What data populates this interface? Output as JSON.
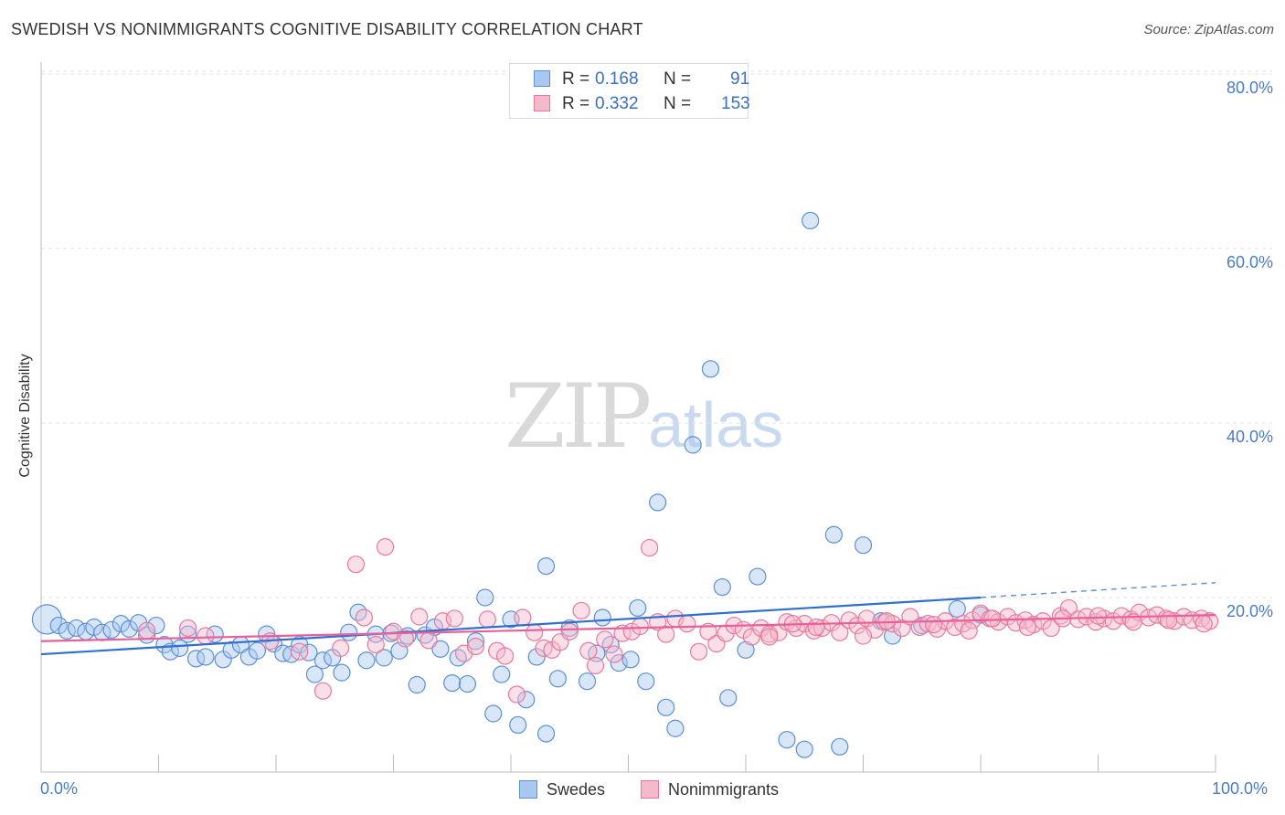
{
  "title": "SWEDISH VS NONIMMIGRANTS COGNITIVE DISABILITY CORRELATION CHART",
  "source": "Source: ZipAtlas.com",
  "watermark": {
    "zip": "ZIP",
    "atlas": "atlas"
  },
  "stats": [
    {
      "r_label": "R =",
      "r_value": "0.168",
      "n_label": "N =",
      "n_value": "91",
      "color": "#a9c8ef"
    },
    {
      "r_label": "R =",
      "r_value": "0.332",
      "n_label": "N =",
      "n_value": "153",
      "color": "#f6b9cc"
    }
  ],
  "legend": [
    {
      "name": "Swedes",
      "color": "#a9c8ef"
    },
    {
      "name": "Nonimmigrants",
      "color": "#f6b9cc"
    }
  ],
  "chart_data": {
    "type": "scatter",
    "title": "SWEDISH VS NONIMMIGRANTS COGNITIVE DISABILITY CORRELATION CHART",
    "xlabel": "",
    "ylabel": "Cognitive Disability",
    "xlim": [
      0,
      100
    ],
    "ylim": [
      0,
      80
    ],
    "x_tick_labels": [
      "0.0%",
      "100.0%"
    ],
    "y_tick_labels": [
      "80.0%",
      "60.0%",
      "40.0%",
      "20.0%"
    ],
    "y_ticks": [
      80,
      60,
      40,
      20
    ],
    "grid": true,
    "legend_position": "bottom",
    "series": [
      {
        "name": "Swedes",
        "color": "#5b8fd6",
        "fill": "#a9c8ef",
        "trend": {
          "x": [
            0,
            80
          ],
          "y": [
            13.5,
            20.0
          ],
          "dashed_extension": {
            "x": [
              80,
              100
            ],
            "y": [
              20.0,
              21.7
            ]
          }
        },
        "points": [
          [
            0.5,
            17.5
          ],
          [
            1.5,
            16.8
          ],
          [
            2.2,
            16.2
          ],
          [
            3.0,
            16.5
          ],
          [
            3.8,
            16.1
          ],
          [
            4.5,
            16.6
          ],
          [
            5.2,
            16.0
          ],
          [
            6.0,
            16.3
          ],
          [
            6.8,
            17.0
          ],
          [
            7.5,
            16.4
          ],
          [
            8.3,
            17.1
          ],
          [
            9.0,
            15.7
          ],
          [
            9.8,
            16.8
          ],
          [
            10.5,
            14.6
          ],
          [
            11.0,
            13.8
          ],
          [
            11.8,
            14.2
          ],
          [
            12.5,
            15.8
          ],
          [
            13.2,
            13.0
          ],
          [
            14.0,
            13.2
          ],
          [
            14.8,
            15.8
          ],
          [
            15.5,
            12.9
          ],
          [
            16.2,
            14.0
          ],
          [
            17.0,
            14.6
          ],
          [
            17.7,
            13.2
          ],
          [
            18.4,
            13.9
          ],
          [
            19.2,
            15.8
          ],
          [
            19.8,
            14.7
          ],
          [
            20.6,
            13.6
          ],
          [
            21.3,
            13.5
          ],
          [
            22.0,
            14.6
          ],
          [
            22.8,
            13.7
          ],
          [
            23.3,
            11.2
          ],
          [
            24.0,
            12.8
          ],
          [
            24.8,
            13.1
          ],
          [
            25.6,
            11.4
          ],
          [
            26.2,
            16.0
          ],
          [
            27.0,
            18.3
          ],
          [
            27.7,
            12.8
          ],
          [
            28.5,
            15.8
          ],
          [
            29.2,
            13.1
          ],
          [
            29.8,
            15.9
          ],
          [
            30.5,
            13.9
          ],
          [
            31.2,
            15.6
          ],
          [
            32.0,
            10.0
          ],
          [
            32.7,
            15.7
          ],
          [
            33.5,
            16.6
          ],
          [
            34.0,
            14.1
          ],
          [
            35.0,
            10.2
          ],
          [
            35.5,
            13.1
          ],
          [
            36.3,
            10.1
          ],
          [
            37.0,
            15.0
          ],
          [
            37.8,
            20.0
          ],
          [
            38.5,
            6.7
          ],
          [
            39.2,
            11.2
          ],
          [
            40.0,
            17.5
          ],
          [
            40.6,
            5.4
          ],
          [
            41.3,
            8.3
          ],
          [
            42.2,
            13.2
          ],
          [
            43.0,
            4.4
          ],
          [
            43.0,
            23.6
          ],
          [
            44.0,
            10.7
          ],
          [
            45.0,
            16.5
          ],
          [
            46.5,
            10.4
          ],
          [
            47.3,
            13.6
          ],
          [
            47.8,
            17.7
          ],
          [
            48.5,
            14.6
          ],
          [
            49.2,
            12.5
          ],
          [
            50.2,
            12.9
          ],
          [
            50.8,
            18.8
          ],
          [
            51.5,
            10.4
          ],
          [
            52.5,
            30.9
          ],
          [
            53.2,
            7.4
          ],
          [
            54.0,
            5.0
          ],
          [
            55.5,
            37.5
          ],
          [
            57.0,
            46.2
          ],
          [
            58.0,
            21.2
          ],
          [
            58.5,
            8.5
          ],
          [
            60.0,
            14.0
          ],
          [
            61.0,
            22.4
          ],
          [
            63.5,
            3.7
          ],
          [
            65.0,
            2.6
          ],
          [
            65.5,
            63.2
          ],
          [
            67.5,
            27.2
          ],
          [
            68.0,
            2.9
          ],
          [
            70.0,
            26.0
          ],
          [
            71.5,
            17.3
          ],
          [
            72.5,
            15.6
          ],
          [
            75.0,
            16.8
          ],
          [
            78.0,
            18.7
          ],
          [
            80.0,
            18.0
          ]
        ]
      },
      {
        "name": "Nonimmigrants",
        "color": "#e8799b",
        "fill": "#f6b9cc",
        "trend": {
          "x": [
            0,
            100
          ],
          "y": [
            15.0,
            18.0
          ]
        },
        "points": [
          [
            9.0,
            16.2
          ],
          [
            12.5,
            16.5
          ],
          [
            14.0,
            15.6
          ],
          [
            19.5,
            15.0
          ],
          [
            22.0,
            13.8
          ],
          [
            24.0,
            9.3
          ],
          [
            25.5,
            14.2
          ],
          [
            26.8,
            23.8
          ],
          [
            27.5,
            17.7
          ],
          [
            28.5,
            14.6
          ],
          [
            29.3,
            25.8
          ],
          [
            30.0,
            16.1
          ],
          [
            31.0,
            15.3
          ],
          [
            32.2,
            17.8
          ],
          [
            33.0,
            15.1
          ],
          [
            34.2,
            17.3
          ],
          [
            35.2,
            17.6
          ],
          [
            36.0,
            13.6
          ],
          [
            37.0,
            14.4
          ],
          [
            38.0,
            17.5
          ],
          [
            38.8,
            13.9
          ],
          [
            39.5,
            13.3
          ],
          [
            40.5,
            8.9
          ],
          [
            41.0,
            17.7
          ],
          [
            42.0,
            16.0
          ],
          [
            42.8,
            14.2
          ],
          [
            43.5,
            14.0
          ],
          [
            44.2,
            14.9
          ],
          [
            45.0,
            16.1
          ],
          [
            46.0,
            18.5
          ],
          [
            46.6,
            13.9
          ],
          [
            47.2,
            12.2
          ],
          [
            48.0,
            15.2
          ],
          [
            48.8,
            13.5
          ],
          [
            49.5,
            15.9
          ],
          [
            50.3,
            16.1
          ],
          [
            51.0,
            16.7
          ],
          [
            51.8,
            25.7
          ],
          [
            52.5,
            17.2
          ],
          [
            53.2,
            15.8
          ],
          [
            54.0,
            17.6
          ],
          [
            55.0,
            17.0
          ],
          [
            56.0,
            13.8
          ],
          [
            56.8,
            16.1
          ],
          [
            57.5,
            14.7
          ],
          [
            58.3,
            15.9
          ],
          [
            59.0,
            16.8
          ],
          [
            59.8,
            16.3
          ],
          [
            60.5,
            15.5
          ],
          [
            61.3,
            16.5
          ],
          [
            62.0,
            15.8
          ],
          [
            62.8,
            16.0
          ],
          [
            63.5,
            17.2
          ],
          [
            64.3,
            16.5
          ],
          [
            65.0,
            17.0
          ],
          [
            65.8,
            16.2
          ],
          [
            66.5,
            16.5
          ],
          [
            67.3,
            17.1
          ],
          [
            68.0,
            16.0
          ],
          [
            68.8,
            17.4
          ],
          [
            69.5,
            16.8
          ],
          [
            70.3,
            17.6
          ],
          [
            71.0,
            16.3
          ],
          [
            71.8,
            17.2
          ],
          [
            72.5,
            17.0
          ],
          [
            73.3,
            16.5
          ],
          [
            74.0,
            17.8
          ],
          [
            74.8,
            16.6
          ],
          [
            75.5,
            17.0
          ],
          [
            76.3,
            16.4
          ],
          [
            77.0,
            17.3
          ],
          [
            77.8,
            16.6
          ],
          [
            78.5,
            17.0
          ],
          [
            79.3,
            17.4
          ],
          [
            80.0,
            18.2
          ],
          [
            80.8,
            17.6
          ],
          [
            81.5,
            17.2
          ],
          [
            82.3,
            17.8
          ],
          [
            83.0,
            17.1
          ],
          [
            83.8,
            17.4
          ],
          [
            84.5,
            16.9
          ],
          [
            85.3,
            17.3
          ],
          [
            86.0,
            16.5
          ],
          [
            86.8,
            17.9
          ],
          [
            87.5,
            18.8
          ],
          [
            88.3,
            17.5
          ],
          [
            89.0,
            17.8
          ],
          [
            89.8,
            17.2
          ],
          [
            90.5,
            17.6
          ],
          [
            91.3,
            17.3
          ],
          [
            92.0,
            17.9
          ],
          [
            92.8,
            17.5
          ],
          [
            93.5,
            18.3
          ],
          [
            94.3,
            17.7
          ],
          [
            95.0,
            18.0
          ],
          [
            95.8,
            17.6
          ],
          [
            96.5,
            17.3
          ],
          [
            97.3,
            17.8
          ],
          [
            98.0,
            17.4
          ],
          [
            98.8,
            17.6
          ],
          [
            99.5,
            17.3
          ],
          [
            62.0,
            15.5
          ],
          [
            64.0,
            17.0
          ],
          [
            66.0,
            16.6
          ],
          [
            70.0,
            15.6
          ],
          [
            72.0,
            17.3
          ],
          [
            76.0,
            16.9
          ],
          [
            79.0,
            16.2
          ],
          [
            81.0,
            17.6
          ],
          [
            84.0,
            16.6
          ],
          [
            87.0,
            17.6
          ],
          [
            90.0,
            17.9
          ],
          [
            93.0,
            17.2
          ],
          [
            96.0,
            17.4
          ],
          [
            99.0,
            17.0
          ]
        ]
      }
    ]
  }
}
